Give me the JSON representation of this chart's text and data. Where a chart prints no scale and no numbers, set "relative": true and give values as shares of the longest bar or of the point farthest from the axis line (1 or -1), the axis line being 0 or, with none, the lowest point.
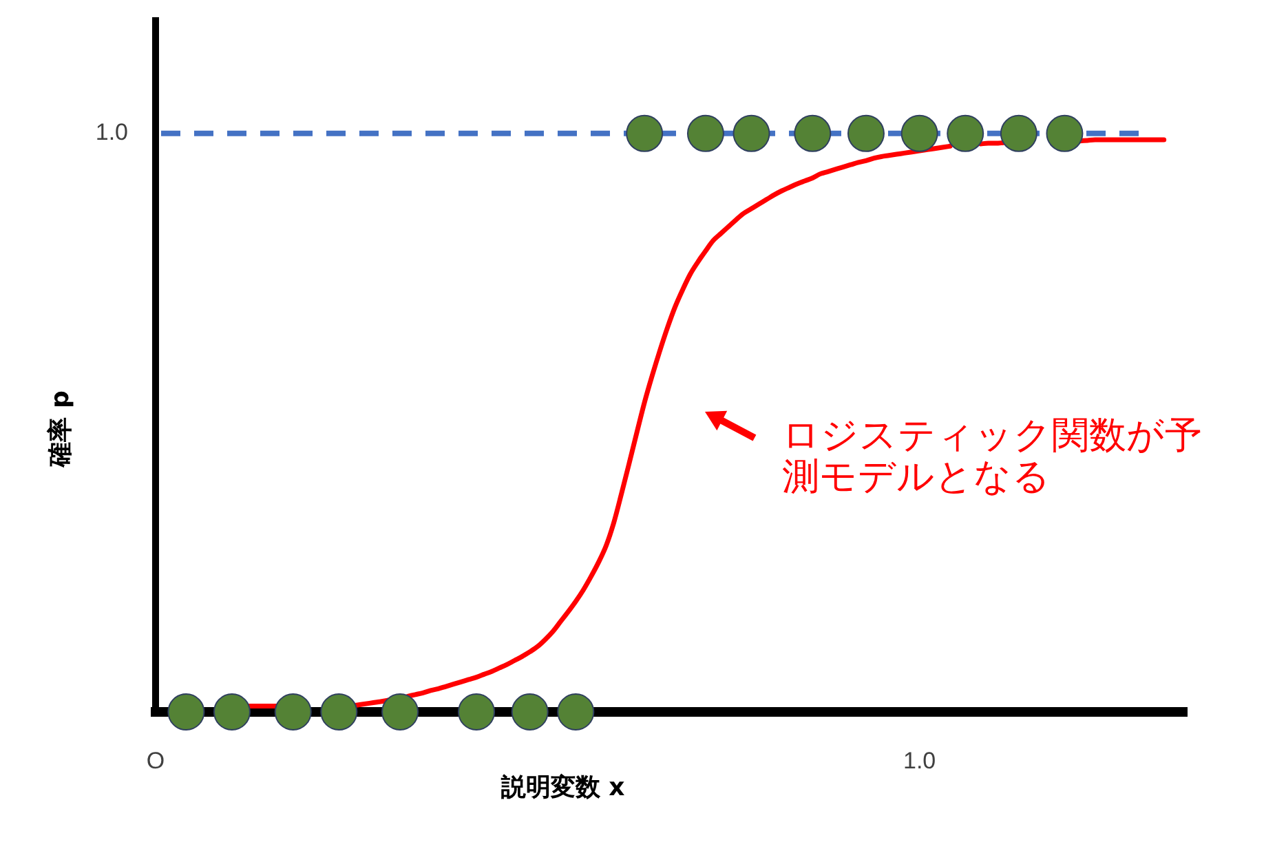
{
  "chart_data": {
    "type": "scatter",
    "xlabel": "説明変数 x",
    "ylabel": "確率 p",
    "relative": true,
    "annotations": [
      "ロジスティック関数が予測モデルとなる"
    ],
    "categories": [
      "O",
      null,
      null,
      null,
      null,
      null,
      null,
      null,
      null,
      null,
      null,
      null,
      null,
      null,
      null,
      null,
      null,
      null,
      null,
      null,
      null,
      null,
      null,
      null,
      null,
      null,
      null,
      null,
      null,
      null,
      null,
      null,
      null,
      null,
      null,
      null,
      null,
      null,
      null,
      null,
      null,
      null,
      null,
      null,
      null,
      null,
      null,
      null,
      null,
      null,
      null,
      null,
      null,
      null,
      null,
      null,
      null,
      null,
      null,
      null,
      null,
      null,
      null,
      null,
      null,
      null,
      null,
      null,
      null,
      null,
      null,
      null,
      null,
      null,
      null,
      null,
      null,
      null,
      null,
      null,
      null,
      null,
      null,
      null,
      null,
      null,
      null,
      null,
      null,
      null,
      null,
      null,
      null,
      null,
      null,
      null,
      null,
      null,
      null,
      null,
      "1.0",
      null,
      null,
      null,
      null,
      null,
      null,
      null,
      null,
      null,
      null,
      null,
      null,
      null,
      null,
      null,
      null,
      null,
      null,
      null,
      null,
      null,
      null,
      null,
      null,
      null,
      null,
      null,
      null,
      null,
      null,
      null,
      null,
      null,
      null,
      null
    ],
    "series": [
      {
        "type": "scatter",
        "color": "#548235",
        "marker": "circle",
        "values": [
          null,
          null,
          null,
          null,
          0,
          null,
          null,
          null,
          null,
          null,
          0,
          null,
          null,
          null,
          null,
          null,
          null,
          null,
          0,
          null,
          null,
          null,
          null,
          null,
          0,
          null,
          null,
          null,
          null,
          null,
          null,
          null,
          0,
          null,
          null,
          null,
          null,
          null,
          null,
          null,
          null,
          null,
          0,
          null,
          null,
          null,
          null,
          null,
          null,
          0,
          null,
          null,
          null,
          null,
          null,
          0,
          null,
          null,
          null,
          null,
          null,
          null,
          null,
          null,
          1,
          null,
          null,
          null,
          null,
          null,
          null,
          null,
          1,
          null,
          null,
          null,
          null,
          null,
          1,
          null,
          null,
          null,
          null,
          null,
          null,
          null,
          1,
          null,
          null,
          null,
          null,
          null,
          null,
          1,
          null,
          null,
          null,
          null,
          null,
          null,
          1,
          null,
          null,
          null,
          null,
          null,
          1,
          null,
          null,
          null,
          null,
          null,
          null,
          1,
          null,
          null,
          null,
          null,
          null,
          1,
          null,
          null,
          null,
          null,
          null,
          null,
          null,
          null,
          null,
          null,
          null,
          null,
          null,
          null,
          null,
          null
        ]
      },
      {
        "type": "line",
        "color": "#ff0000",
        "marker": "none",
        "line_style": "solid",
        "values": [
          null,
          null,
          null,
          null,
          null,
          null,
          null,
          null,
          null,
          null,
          null,
          null,
          0.01,
          0.01,
          0.01,
          0.01,
          0.01,
          null,
          null,
          null,
          null,
          null,
          null,
          null,
          null,
          null,
          0.011,
          0.013,
          0.015,
          0.017,
          0.019,
          0.022,
          null,
          0.027,
          0.03,
          0.033,
          0.037,
          0.04,
          0.044,
          0.048,
          0.052,
          0.056,
          0.06,
          0.065,
          0.07,
          0.076,
          0.082,
          0.089,
          0.096,
          0.104,
          0.113,
          0.125,
          0.139,
          0.156,
          0.173,
          0.191,
          0.211,
          0.234,
          0.259,
          0.288,
          0.328,
          0.378,
          0.43,
          0.483,
          0.535,
          0.581,
          0.624,
          0.664,
          0.7,
          0.73,
          0.757,
          0.778,
          0.797,
          0.815,
          0.827,
          0.839,
          0.851,
          0.862,
          0.87,
          0.878,
          0.886,
          0.894,
          0.901,
          0.907,
          0.913,
          0.918,
          0.923,
          0.93,
          0.934,
          0.938,
          0.942,
          0.946,
          0.95,
          0.953,
          0.957,
          0.96,
          0.962,
          0.964,
          0.966,
          0.968,
          0.97,
          0.972,
          0.974,
          0.976,
          0.978,
          null,
          null,
          null,
          0.982,
          0.983,
          0.983,
          0.984,
          null,
          null,
          null,
          null,
          null,
          null,
          null,
          null,
          null,
          0.987,
          0.988,
          0.989,
          0.989,
          0.989,
          0.989,
          0.989,
          0.989,
          0.989,
          0.989,
          0.989,
          0.989,
          null,
          null,
          null
        ]
      }
    ],
    "ref_lines": [
      {
        "axis": "y",
        "value": 1,
        "label": "1.0",
        "color": "#4472c4",
        "line_style": "dashed"
      }
    ]
  }
}
